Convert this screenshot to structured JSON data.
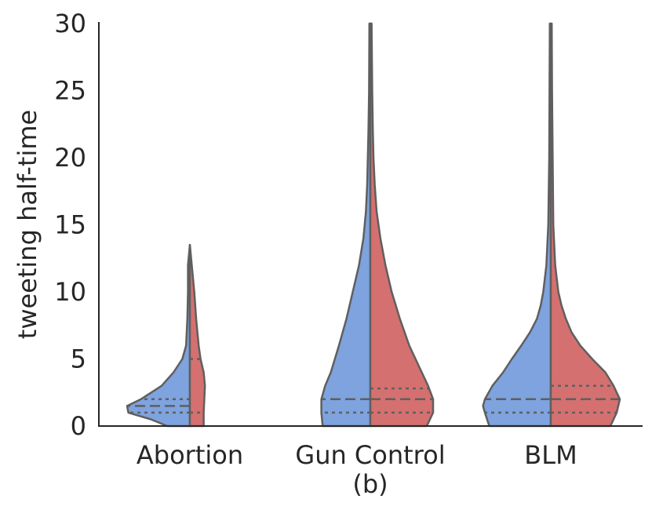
{
  "chart_data": {
    "type": "split-violin",
    "categories": [
      "Abortion",
      "Gun Control",
      "BLM"
    ],
    "ylabel": "tweeting half-time",
    "xlabel": "",
    "caption": "(b)",
    "ylim": [
      0,
      30
    ],
    "yticks": [
      0,
      5,
      10,
      15,
      20,
      25,
      30
    ],
    "grid": false,
    "colors": {
      "left": "#7ea3de",
      "right": "#d47170"
    },
    "violins": [
      {
        "category": "Abortion",
        "left": {
          "ymax": 13.5,
          "profile": [
            [
              0,
              0.36
            ],
            [
              0.5,
              0.62
            ],
            [
              1,
              0.98
            ],
            [
              1.5,
              1.0
            ],
            [
              2,
              0.78
            ],
            [
              3,
              0.45
            ],
            [
              4,
              0.26
            ],
            [
              5,
              0.12
            ],
            [
              6,
              0.06
            ],
            [
              8,
              0.04
            ],
            [
              10,
              0.03
            ],
            [
              12,
              0.03
            ],
            [
              13.5,
              0.0
            ]
          ],
          "quartiles": [
            1.0,
            1.5,
            2.0
          ]
        },
        "right": {
          "ymax": 13.5,
          "profile": [
            [
              0,
              0.22
            ],
            [
              1,
              0.22
            ],
            [
              2,
              0.23
            ],
            [
              3,
              0.24
            ],
            [
              4,
              0.22
            ],
            [
              5,
              0.17
            ],
            [
              6,
              0.14
            ],
            [
              8,
              0.1
            ],
            [
              10,
              0.07
            ],
            [
              11,
              0.05
            ],
            [
              12,
              0.03
            ],
            [
              13.5,
              0.0
            ]
          ],
          "quartiles": [
            1.0,
            5.0
          ]
        }
      },
      {
        "category": "Gun Control",
        "left": {
          "ymax": 30,
          "profile": [
            [
              0,
              0.76
            ],
            [
              1,
              0.78
            ],
            [
              2,
              0.78
            ],
            [
              3,
              0.72
            ],
            [
              4,
              0.63
            ],
            [
              6,
              0.5
            ],
            [
              8,
              0.38
            ],
            [
              10,
              0.28
            ],
            [
              12,
              0.18
            ],
            [
              14,
              0.11
            ],
            [
              16,
              0.07
            ],
            [
              18,
              0.05
            ],
            [
              20,
              0.04
            ],
            [
              22,
              0.03
            ],
            [
              25,
              0.02
            ],
            [
              30,
              0.015
            ]
          ],
          "quartiles": [
            1.0,
            2.0
          ]
        },
        "right": {
          "ymax": 30,
          "profile": [
            [
              0,
              0.9
            ],
            [
              1,
              1.0
            ],
            [
              2,
              1.0
            ],
            [
              3,
              0.92
            ],
            [
              4,
              0.82
            ],
            [
              6,
              0.62
            ],
            [
              8,
              0.47
            ],
            [
              10,
              0.34
            ],
            [
              12,
              0.24
            ],
            [
              14,
              0.16
            ],
            [
              16,
              0.1
            ],
            [
              18,
              0.07
            ],
            [
              20,
              0.05
            ],
            [
              22,
              0.04
            ],
            [
              25,
              0.03
            ],
            [
              30,
              0.02
            ]
          ],
          "quartiles": [
            1.0,
            2.0,
            2.8
          ]
        }
      },
      {
        "category": "BLM",
        "left": {
          "ymax": 30,
          "profile": [
            [
              0,
              0.98
            ],
            [
              1,
              1.05
            ],
            [
              1.5,
              1.08
            ],
            [
              2,
              1.05
            ],
            [
              3,
              0.93
            ],
            [
              4,
              0.76
            ],
            [
              5,
              0.62
            ],
            [
              6,
              0.47
            ],
            [
              7,
              0.33
            ],
            [
              8,
              0.22
            ],
            [
              9,
              0.16
            ],
            [
              10,
              0.12
            ],
            [
              12,
              0.07
            ],
            [
              15,
              0.04
            ],
            [
              20,
              0.025
            ],
            [
              25,
              0.02
            ],
            [
              30,
              0.015
            ]
          ],
          "quartiles": [
            1.0,
            2.0
          ]
        },
        "right": {
          "ymax": 30,
          "profile": [
            [
              0,
              0.95
            ],
            [
              1,
              1.05
            ],
            [
              2,
              1.1
            ],
            [
              3,
              1.0
            ],
            [
              4,
              0.87
            ],
            [
              5,
              0.66
            ],
            [
              6,
              0.47
            ],
            [
              7,
              0.33
            ],
            [
              8,
              0.24
            ],
            [
              9,
              0.17
            ],
            [
              10,
              0.12
            ],
            [
              12,
              0.07
            ],
            [
              14,
              0.05
            ],
            [
              15,
              0.04
            ],
            [
              20,
              0.03
            ],
            [
              25,
              0.02
            ],
            [
              30,
              0.015
            ]
          ],
          "quartiles": [
            1.0,
            2.0,
            3.0
          ]
        }
      }
    ]
  }
}
